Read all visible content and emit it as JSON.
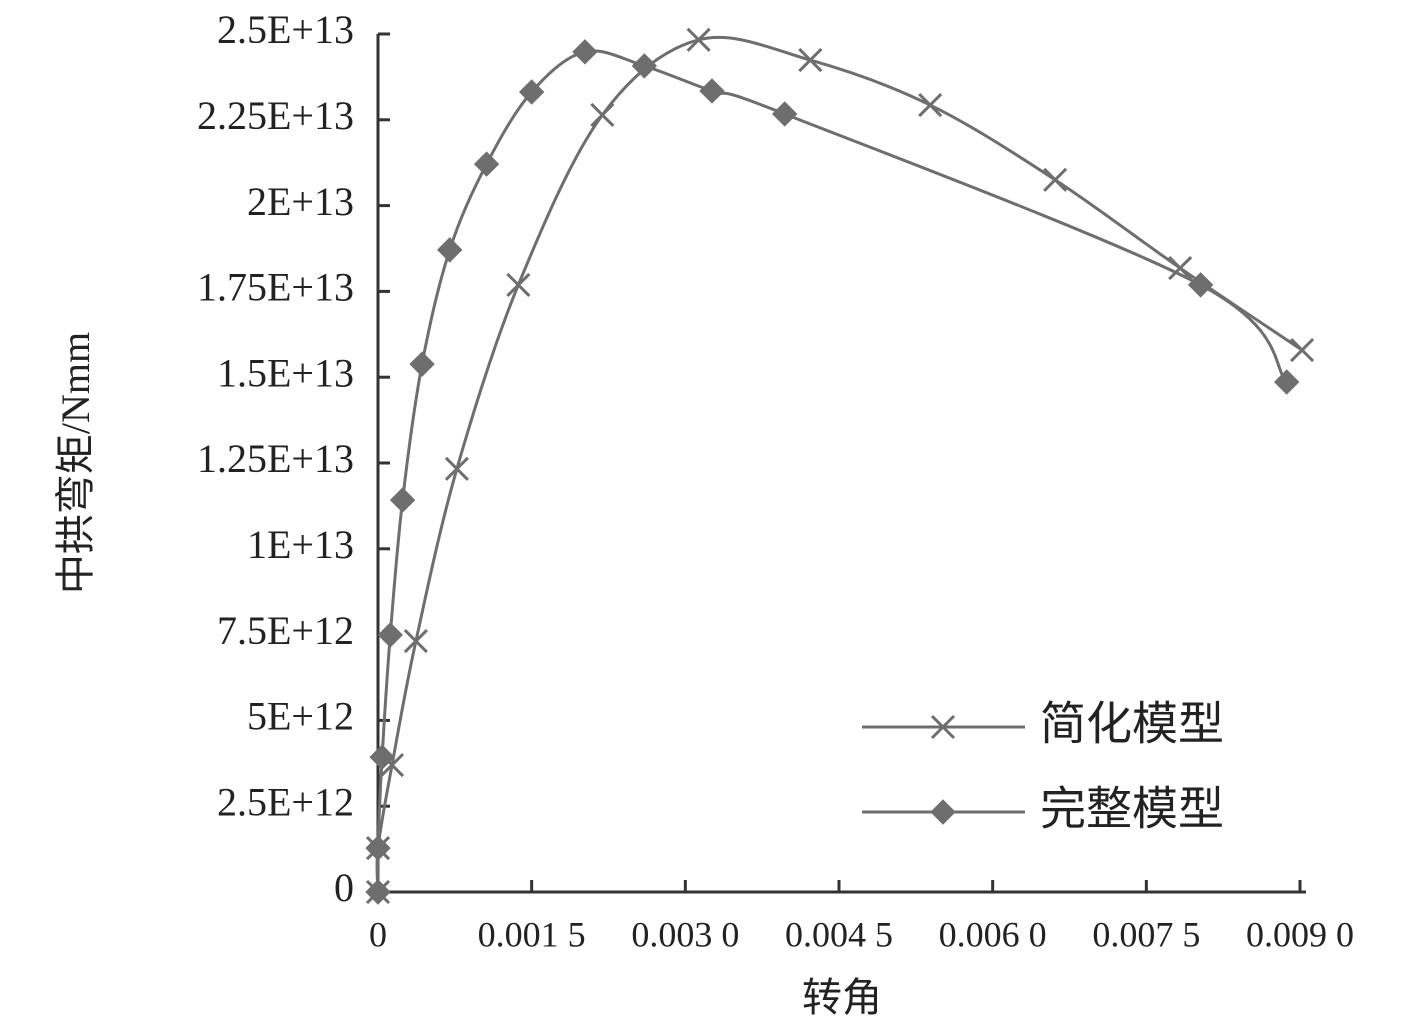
{
  "chart_data": {
    "type": "line",
    "x_label": "转角",
    "y_label": "中拱弯矩/Nmm",
    "xlim": [
      0,
      0.009
    ],
    "ylim": [
      0,
      25000000000000.0
    ],
    "xticks": [
      0,
      {
        "value": 0.0015,
        "label": "0.001 5"
      },
      {
        "value": 0.003,
        "label": "0.003 0"
      },
      {
        "value": 0.0045,
        "label": "0.004 5"
      },
      {
        "value": 0.006,
        "label": "0.006 0"
      },
      {
        "value": 0.0075,
        "label": "0.007 5"
      },
      {
        "value": 0.009,
        "label": "0.009 0"
      }
    ],
    "yticks": [
      0,
      {
        "value": 2500000000000.0,
        "label": "2.5E+12"
      },
      {
        "value": 5000000000000.0,
        "label": "5E+12"
      },
      {
        "value": 7500000000000.0,
        "label": "7.5E+12"
      },
      {
        "value": 10000000000000.0,
        "label": "1E+13"
      },
      {
        "value": 12500000000000.0,
        "label": "1.25E+13"
      },
      {
        "value": 15000000000000.0,
        "label": "1.5E+13"
      },
      {
        "value": 17500000000000.0,
        "label": "1.75E+13"
      },
      {
        "value": 20000000000000.0,
        "label": "2E+13"
      },
      {
        "value": 22500000000000.0,
        "label": "2.25E+13"
      },
      {
        "value": 25000000000000.0,
        "label": "2.5E+13"
      }
    ],
    "legend": "lower right",
    "smooth": true,
    "series": [
      {
        "name": "简化模型",
        "color": "#6e6e6e",
        "marker": "x",
        "x": [
          0,
          0,
          0.000137,
          0.00037,
          0.00077,
          0.00137,
          0.00219,
          0.00313,
          0.00422,
          0.00539,
          0.00661,
          0.00783,
          0.00902
        ],
        "values": [
          0,
          1280000000000.0,
          3700000000000.0,
          7310000000000.0,
          12330000000000.0,
          17690000000000.0,
          22640000000000.0,
          24830000000000.0,
          24240000000000.0,
          22930000000000.0,
          20750000000000.0,
          18180000000000.0,
          15790000000000.0
        ]
      },
      {
        "name": "完整模型",
        "color": "#6e6e6e",
        "marker": "diamond",
        "x": [
          0,
          0,
          4e-05,
          0.00012,
          0.00024,
          0.00043,
          0.0007,
          0.00106,
          0.0015,
          0.00202,
          0.0026,
          0.00326,
          0.00397,
          0.00803,
          0.00887
        ],
        "values": [
          0,
          1280000000000.0,
          3930000000000.0,
          7490000000000.0,
          11420000000000.0,
          15380000000000.0,
          18710000000000.0,
          21210000000000.0,
          23310000000000.0,
          24480000000000.0,
          24070000000000.0,
          23340000000000.0,
          22670000000000.0,
          17690000000000.0,
          14860000000000.0
        ]
      }
    ]
  }
}
